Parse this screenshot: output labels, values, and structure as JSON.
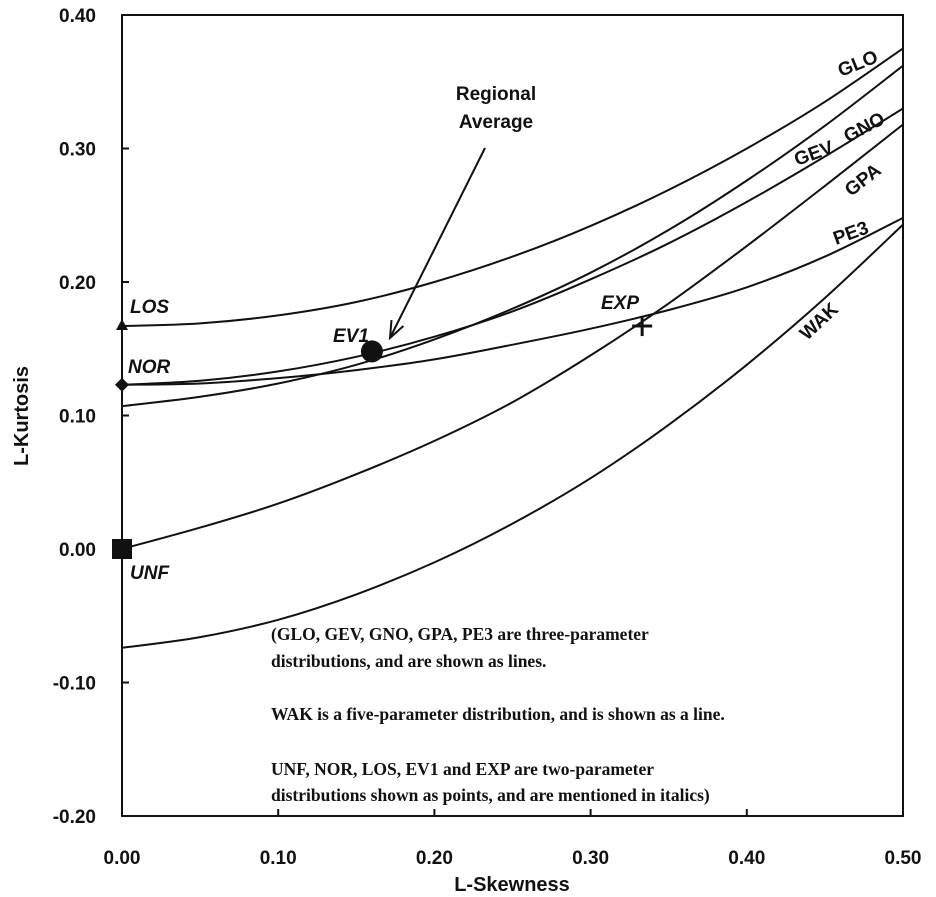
{
  "chart_data": {
    "type": "line",
    "xlabel": "L-Skewness",
    "ylabel": "L-Kurtosis",
    "xlim": [
      0,
      0.5
    ],
    "ylim": [
      -0.2,
      0.4
    ],
    "x_ticks": [
      "0.00",
      "0.10",
      "0.20",
      "0.30",
      "0.40",
      "0.50"
    ],
    "y_ticks": [
      "0.40",
      "0.30",
      "0.20",
      "0.10",
      "0.00",
      "-0.10",
      "-0.20"
    ],
    "grid": false,
    "series": [
      {
        "name": "GLO",
        "x": [
          0,
          0.05,
          0.1,
          0.15,
          0.2,
          0.25,
          0.3,
          0.35,
          0.4,
          0.45,
          0.5
        ],
        "y": [
          0.167,
          0.169,
          0.175,
          0.185,
          0.2,
          0.219,
          0.242,
          0.269,
          0.3,
          0.335,
          0.375
        ]
      },
      {
        "name": "GEV",
        "x": [
          0,
          0.05,
          0.1,
          0.15,
          0.2,
          0.25,
          0.3,
          0.35,
          0.4,
          0.45,
          0.5
        ],
        "y": [
          0.107,
          0.114,
          0.124,
          0.138,
          0.157,
          0.18,
          0.207,
          0.239,
          0.276,
          0.317,
          0.362
        ]
      },
      {
        "name": "GNO",
        "x": [
          0,
          0.05,
          0.1,
          0.15,
          0.2,
          0.25,
          0.3,
          0.35,
          0.4,
          0.45,
          0.5
        ],
        "y": [
          0.123,
          0.126,
          0.133,
          0.144,
          0.159,
          0.178,
          0.202,
          0.229,
          0.26,
          0.294,
          0.33
        ]
      },
      {
        "name": "GPA",
        "x": [
          0,
          0.05,
          0.1,
          0.15,
          0.2,
          0.25,
          0.3,
          0.35,
          0.4,
          0.45,
          0.5
        ],
        "y": [
          0,
          0.016,
          0.034,
          0.056,
          0.081,
          0.11,
          0.145,
          0.184,
          0.227,
          0.272,
          0.318
        ]
      },
      {
        "name": "PE3",
        "x": [
          0,
          0.05,
          0.1,
          0.15,
          0.2,
          0.25,
          0.3,
          0.35,
          0.4,
          0.45,
          0.5
        ],
        "y": [
          0.123,
          0.124,
          0.128,
          0.134,
          0.142,
          0.153,
          0.165,
          0.179,
          0.196,
          0.219,
          0.248
        ]
      },
      {
        "name": "WAK",
        "x": [
          0,
          0.05,
          0.1,
          0.15,
          0.2,
          0.25,
          0.3,
          0.35,
          0.4,
          0.45,
          0.5
        ],
        "y": [
          -0.074,
          -0.066,
          -0.053,
          -0.034,
          -0.01,
          0.019,
          0.053,
          0.093,
          0.138,
          0.188,
          0.243
        ]
      }
    ],
    "points": [
      {
        "name": "LOS",
        "x": 0,
        "y": 0.167,
        "marker": "triangle"
      },
      {
        "name": "NOR",
        "x": 0,
        "y": 0.123,
        "marker": "diamond"
      },
      {
        "name": "UNF",
        "x": 0,
        "y": 0.0,
        "marker": "square"
      },
      {
        "name": "EV1",
        "x": 0.17,
        "y": 0.15,
        "marker": "none"
      },
      {
        "name": "EXP",
        "x": 0.333,
        "y": 0.167,
        "marker": "plus"
      }
    ],
    "regional_average": {
      "label_line1": "Regional",
      "label_line2": "Average",
      "x": 0.16,
      "y": 0.148,
      "marker": "circle"
    },
    "notes": [
      "(GLO, GEV, GNO, GPA, PE3 are three-parameter",
      "distributions, and are shown as lines.",
      "WAK is a five-parameter distribution, and is shown as a line.",
      "UNF, NOR, LOS, EV1 and EXP are two-parameter",
      "distributions shown as points, and are mentioned in italics)"
    ]
  }
}
